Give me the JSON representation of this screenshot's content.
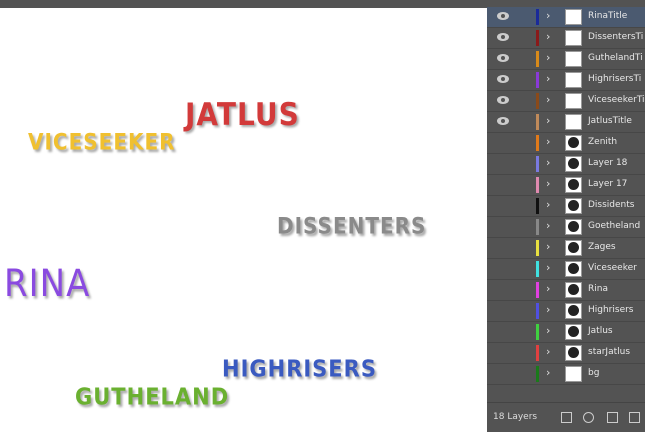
{
  "canvas": {
    "texts": [
      "JATLUS",
      "VICESEEKER",
      "DISSENTERS",
      "RINA",
      "HIGHRISERS",
      "GUTHELAND"
    ]
  },
  "layers": {
    "items": [
      "RinaTitle",
      "DissentersTi",
      "GuthelandTi",
      "HighrisersTi",
      "ViceseekerTi",
      "JatlusTitle",
      "Zenith",
      "Layer 18",
      "Layer 17",
      "Dissidents",
      "Goetheland",
      "Zages",
      "Viceseeker",
      "Rina",
      "Highrisers",
      "Jatlus",
      "starJatlus",
      "bg"
    ],
    "footer": "18 Layers"
  }
}
